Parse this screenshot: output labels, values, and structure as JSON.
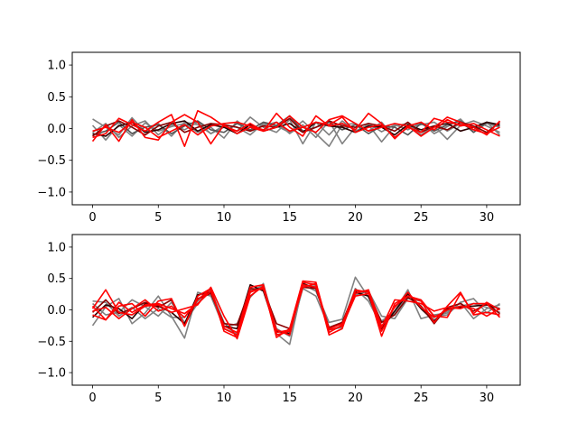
{
  "chart_data": [
    {
      "type": "line",
      "title": "",
      "xlabel": "",
      "ylabel": "",
      "xlim": [
        -1.55,
        32.55
      ],
      "ylim": [
        -1.2,
        1.2
      ],
      "xticks": [
        0,
        5,
        10,
        15,
        20,
        25,
        30
      ],
      "yticks": [
        -1.0,
        -0.5,
        0.0,
        0.5,
        1.0
      ],
      "xtick_labels": [
        "0",
        "5",
        "10",
        "15",
        "20",
        "25",
        "30"
      ],
      "ytick_labels": [
        "−1.0",
        "−0.5",
        "0.0",
        "0.5",
        "1.0"
      ],
      "grid": false,
      "legend": "none",
      "x": [
        0,
        1,
        2,
        3,
        4,
        5,
        6,
        7,
        8,
        9,
        10,
        11,
        12,
        13,
        14,
        15,
        16,
        17,
        18,
        19,
        20,
        21,
        22,
        23,
        24,
        25,
        26,
        27,
        28,
        29,
        30,
        31
      ],
      "series": [
        {
          "color": "#808080",
          "values": [
            0.15,
            0.02,
            -0.1,
            0.17,
            -0.05,
            0.08,
            -0.12,
            0.1,
            0.06,
            -0.08,
            0.02,
            -0.04,
            0.18,
            0.02,
            -0.06,
            0.14,
            -0.24,
            0.1,
            -0.1,
            0.12,
            -0.04,
            0.06,
            -0.21,
            0.04,
            0.08,
            -0.1,
            0.04,
            -0.17,
            0.05,
            0.12,
            0.04,
            -0.06
          ]
        },
        {
          "color": "#808080",
          "values": [
            0.05,
            -0.18,
            0.06,
            -0.12,
            0.09,
            -0.04,
            0.03,
            0.08,
            -0.06,
            0.02,
            -0.15,
            0.12,
            -0.04,
            0.05,
            0.1,
            -0.08,
            0.06,
            -0.14,
            0.12,
            -0.24,
            0.02,
            0.08,
            -0.05,
            0.06,
            -0.02,
            0.1,
            -0.08,
            0.03,
            0.15,
            -0.06,
            0.08,
            0.02
          ]
        },
        {
          "color": "#808080",
          "values": [
            -0.06,
            0.08,
            -0.14,
            0.04,
            0.12,
            -0.1,
            0.06,
            -0.02,
            0.1,
            -0.08,
            0.05,
            0.02,
            -0.1,
            0.08,
            0.04,
            -0.06,
            0.12,
            -0.08,
            -0.28,
            0.06,
            0.08,
            -0.04,
            0.1,
            -0.14,
            0.02,
            0.06,
            0.1,
            -0.04,
            0.08,
            -0.02,
            0.1,
            -0.1
          ]
        },
        {
          "color": "#555555",
          "values": [
            -0.1,
            -0.04,
            0.1,
            -0.08,
            0.02,
            0.06,
            -0.08,
            0.04,
            0.12,
            -0.02,
            -0.06,
            0.08,
            -0.02,
            0.1,
            0.05,
            0.2,
            -0.04,
            0.02,
            0.1,
            -0.02,
            0.06,
            -0.08,
            0.04,
            0.02,
            -0.1,
            0.08,
            -0.04,
            0.06,
            0.12,
            -0.06,
            0.1,
            0.04
          ]
        },
        {
          "color": "#2a0000",
          "values": [
            -0.08,
            -0.12,
            0.04,
            0.1,
            -0.06,
            -0.02,
            0.08,
            0.12,
            -0.04,
            0.06,
            0.02,
            -0.08,
            0.06,
            -0.04,
            0.02,
            0.08,
            -0.06,
            0.1,
            0.04,
            0.02,
            -0.06,
            0.04,
            0.02,
            -0.1,
            0.06,
            -0.02,
            0.04,
            0.08,
            -0.04,
            0.02,
            0.1,
            0.06
          ]
        },
        {
          "color": "#8b0000",
          "values": [
            -0.12,
            0.04,
            0.12,
            0.02,
            -0.1,
            0.04,
            0.1,
            -0.06,
            0.02,
            0.08,
            0.06,
            0.02,
            -0.04,
            0.04,
            0.02,
            0.16,
            -0.06,
            0.02,
            0.12,
            0.04,
            0.02,
            0.08,
            0.04,
            -0.04,
            0.1,
            -0.06,
            0.04,
            -0.02,
            0.1,
            0.04,
            -0.06,
            0.1
          ]
        },
        {
          "color": "#ff0000",
          "values": [
            -0.2,
            0.06,
            -0.2,
            0.14,
            -0.14,
            -0.18,
            0.1,
            0.22,
            0.1,
            -0.24,
            0.06,
            -0.08,
            0.02,
            -0.04,
            0.24,
            0.02,
            -0.12,
            0.2,
            0.04,
            0.08,
            -0.02,
            0.24,
            0.08,
            -0.16,
            0.04,
            -0.12,
            0.02,
            0.18,
            0.1,
            -0.02,
            -0.08,
            0.02
          ]
        },
        {
          "color": "#ff0000",
          "values": [
            -0.14,
            -0.08,
            0.16,
            0.06,
            -0.04,
            0.1,
            0.22,
            -0.28,
            0.28,
            0.18,
            0.04,
            -0.04,
            0.08,
            -0.04,
            0.02,
            0.2,
            0.02,
            0.1,
            0.06,
            0.18,
            -0.06,
            0.02,
            0.06,
            -0.14,
            0.02,
            -0.06,
            0.16,
            0.1,
            0.06,
            0.02,
            -0.1,
            0.12
          ]
        },
        {
          "color": "#ff0000",
          "values": [
            -0.04,
            0.02,
            -0.06,
            0.1,
            0.02,
            -0.14,
            -0.04,
            0.06,
            -0.1,
            0.04,
            0.08,
            0.1,
            0.04,
            -0.02,
            0.1,
            -0.04,
            0.02,
            -0.06,
            0.14,
            0.2,
            0.08,
            -0.04,
            0.02,
            0.08,
            0.04,
            0.1,
            -0.02,
            0.14,
            0.04,
            0.08,
            -0.02,
            -0.12
          ]
        }
      ]
    },
    {
      "type": "line",
      "title": "",
      "xlabel": "",
      "ylabel": "",
      "xlim": [
        -1.55,
        32.55
      ],
      "ylim": [
        -1.2,
        1.2
      ],
      "xticks": [
        0,
        5,
        10,
        15,
        20,
        25,
        30
      ],
      "yticks": [
        -1.0,
        -0.5,
        0.0,
        0.5,
        1.0
      ],
      "xtick_labels": [
        "0",
        "5",
        "10",
        "15",
        "20",
        "25",
        "30"
      ],
      "ytick_labels": [
        "−1.0",
        "−0.5",
        "0.0",
        "0.5",
        "1.0"
      ],
      "grid": false,
      "legend": "none",
      "x": [
        0,
        1,
        2,
        3,
        4,
        5,
        6,
        7,
        8,
        9,
        10,
        11,
        12,
        13,
        14,
        15,
        16,
        17,
        18,
        19,
        20,
        21,
        22,
        23,
        24,
        25,
        26,
        27,
        28,
        29,
        30,
        31
      ],
      "series": [
        {
          "color": "#808080",
          "values": [
            -0.25,
            0.05,
            0.18,
            -0.22,
            -0.05,
            0.22,
            -0.1,
            -0.45,
            0.28,
            0.22,
            -0.28,
            -0.22,
            0.2,
            0.42,
            -0.38,
            -0.55,
            0.4,
            0.3,
            -0.2,
            -0.15,
            0.52,
            0.2,
            -0.18,
            -0.02,
            0.32,
            -0.14,
            -0.08,
            -0.05,
            0.12,
            0.18,
            -0.05,
            0.1
          ]
        },
        {
          "color": "#808080",
          "values": [
            0.1,
            -0.08,
            -0.04,
            0.16,
            0.05,
            -0.1,
            0.12,
            -0.2,
            0.1,
            0.3,
            -0.3,
            -0.38,
            0.28,
            0.4,
            -0.3,
            -0.42,
            0.34,
            0.22,
            -0.28,
            -0.22,
            0.34,
            0.14,
            -0.26,
            -0.06,
            0.24,
            0.06,
            -0.16,
            -0.02,
            0.06,
            0.1,
            0.04,
            -0.04
          ]
        },
        {
          "color": "#808080",
          "values": [
            0.14,
            0.12,
            -0.1,
            0.04,
            -0.14,
            0.02,
            -0.12,
            -0.12,
            0.14,
            0.32,
            -0.2,
            -0.42,
            0.32,
            0.36,
            -0.4,
            -0.35,
            0.38,
            0.38,
            -0.32,
            -0.28,
            0.24,
            0.3,
            -0.1,
            -0.14,
            0.18,
            0.14,
            -0.1,
            -0.08,
            0.12,
            -0.14,
            0.02,
            0.08
          ]
        },
        {
          "color": "#2a0000",
          "values": [
            -0.12,
            0.08,
            0.02,
            -0.14,
            0.1,
            0.06,
            -0.04,
            -0.22,
            0.24,
            0.28,
            -0.26,
            -0.3,
            0.4,
            0.3,
            -0.34,
            -0.38,
            0.42,
            0.34,
            -0.3,
            -0.2,
            0.28,
            0.22,
            -0.3,
            -0.02,
            0.26,
            0.02,
            -0.18,
            0.02,
            0.04,
            0.06,
            0.08,
            0.02
          ]
        },
        {
          "color": "#8b0000",
          "values": [
            -0.04,
            0.16,
            -0.06,
            0.02,
            0.12,
            0.04,
            0.16,
            -0.26,
            0.18,
            0.26,
            -0.22,
            -0.24,
            0.34,
            0.32,
            -0.22,
            -0.3,
            0.36,
            0.34,
            -0.28,
            -0.2,
            0.3,
            0.28,
            -0.2,
            -0.08,
            0.2,
            0.06,
            -0.22,
            0.04,
            0.1,
            -0.02,
            0.1,
            -0.06
          ]
        },
        {
          "color": "#ff0000",
          "values": [
            0.02,
            0.32,
            -0.04,
            -0.08,
            0.06,
            0.08,
            -0.04,
            0.02,
            0.08,
            0.36,
            -0.1,
            -0.46,
            0.22,
            0.38,
            -0.44,
            -0.3,
            0.46,
            0.44,
            -0.36,
            -0.24,
            0.32,
            0.28,
            -0.42,
            0.1,
            0.22,
            0.16,
            -0.1,
            -0.12,
            0.26,
            -0.06,
            0.12,
            0.0
          ]
        },
        {
          "color": "#ff0000",
          "values": [
            0.06,
            -0.16,
            0.06,
            0.1,
            -0.1,
            0.14,
            0.18,
            -0.26,
            0.22,
            0.34,
            -0.34,
            -0.44,
            0.28,
            0.36,
            -0.32,
            -0.4,
            0.44,
            0.4,
            -0.4,
            -0.3,
            0.3,
            0.3,
            -0.34,
            0.06,
            0.22,
            0.14,
            -0.2,
            0.06,
            0.28,
            -0.08,
            -0.04,
            -0.08
          ]
        },
        {
          "color": "#ff0000",
          "values": [
            -0.08,
            -0.16,
            0.12,
            -0.04,
            0.08,
            0.1,
            0.02,
            -0.06,
            0.1,
            0.3,
            -0.26,
            -0.36,
            0.36,
            0.4,
            -0.36,
            -0.32,
            0.4,
            0.36,
            -0.3,
            -0.22,
            0.26,
            0.32,
            -0.26,
            0.04,
            0.28,
            0.04,
            -0.12,
            0.0,
            0.06,
            0.02,
            -0.1,
            0.02
          ]
        },
        {
          "color": "#ff0000",
          "values": [
            -0.02,
            0.04,
            -0.14,
            0.02,
            0.16,
            -0.02,
            0.06,
            -0.12,
            0.16,
            0.34,
            -0.3,
            -0.4,
            0.3,
            0.34,
            -0.4,
            -0.34,
            0.36,
            0.42,
            -0.32,
            -0.26,
            0.22,
            0.26,
            -0.28,
            0.16,
            0.14,
            0.1,
            -0.02,
            0.04,
            0.02,
            0.1,
            0.1,
            -0.12
          ]
        }
      ]
    }
  ]
}
